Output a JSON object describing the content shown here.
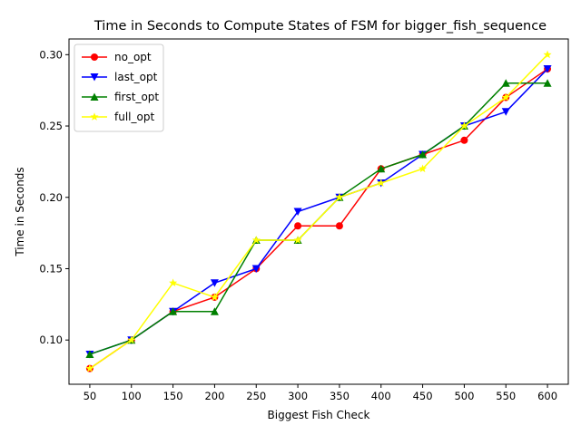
{
  "chart_data": {
    "type": "line",
    "title": "Time in Seconds to Compute States of FSM for bigger_fish_sequence",
    "xlabel": "Biggest Fish Check",
    "ylabel": "Time in Seconds",
    "x": [
      50,
      100,
      150,
      200,
      250,
      300,
      350,
      400,
      450,
      500,
      550,
      600
    ],
    "xlim": [
      25,
      625
    ],
    "ylim": [
      0.069,
      0.311
    ],
    "yticks": [
      "0.10",
      "0.15",
      "0.20",
      "0.25",
      "0.30"
    ],
    "legend_position": "upper-left",
    "series": [
      {
        "name": "no_opt",
        "color": "#ff0000",
        "marker": "circle",
        "values": [
          0.08,
          0.1,
          0.12,
          0.13,
          0.15,
          0.18,
          0.18,
          0.22,
          0.23,
          0.24,
          0.27,
          0.29
        ]
      },
      {
        "name": "last_opt",
        "color": "#0000ff",
        "marker": "triangle-down",
        "values": [
          0.09,
          0.1,
          0.12,
          0.14,
          0.15,
          0.19,
          0.2,
          0.21,
          0.23,
          0.25,
          0.26,
          0.29
        ]
      },
      {
        "name": "first_opt",
        "color": "#008000",
        "marker": "triangle-up",
        "values": [
          0.09,
          0.1,
          0.12,
          0.12,
          0.17,
          0.17,
          0.2,
          0.22,
          0.23,
          0.25,
          0.28,
          0.28
        ]
      },
      {
        "name": "full_opt",
        "color": "#ffff00",
        "marker": "star",
        "values": [
          0.08,
          0.1,
          0.14,
          0.13,
          0.17,
          0.17,
          0.2,
          0.21,
          0.22,
          0.25,
          0.27,
          0.3
        ]
      }
    ]
  }
}
